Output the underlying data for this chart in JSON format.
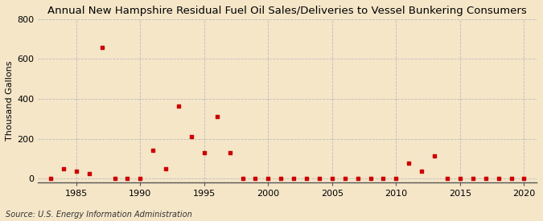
{
  "title": "Annual New Hampshire Residual Fuel Oil Sales/Deliveries to Vessel Bunkering Consumers",
  "ylabel": "Thousand Gallons",
  "source": "Source: U.S. Energy Information Administration",
  "background_color": "#f5e6c8",
  "marker_color": "#cc0000",
  "years": [
    1983,
    1984,
    1985,
    1986,
    1987,
    1988,
    1989,
    1990,
    1991,
    1992,
    1993,
    1994,
    1995,
    1996,
    1997,
    1998,
    1999,
    2000,
    2001,
    2002,
    2003,
    2004,
    2005,
    2006,
    2007,
    2008,
    2009,
    2010,
    2011,
    2012,
    2013,
    2014,
    2015,
    2016,
    2017,
    2018,
    2019,
    2020
  ],
  "values": [
    0,
    50,
    35,
    25,
    660,
    0,
    0,
    0,
    140,
    50,
    365,
    210,
    130,
    310,
    130,
    0,
    0,
    0,
    0,
    0,
    0,
    0,
    0,
    0,
    0,
    0,
    0,
    0,
    75,
    35,
    115,
    0,
    0,
    0,
    0,
    0,
    0,
    0
  ],
  "xlim": [
    1982,
    2021
  ],
  "ylim": [
    -20,
    800
  ],
  "yticks": [
    0,
    200,
    400,
    600,
    800
  ],
  "xticks": [
    1985,
    1990,
    1995,
    2000,
    2005,
    2010,
    2015,
    2020
  ],
  "title_fontsize": 9.5,
  "label_fontsize": 8,
  "tick_fontsize": 8,
  "source_fontsize": 7
}
